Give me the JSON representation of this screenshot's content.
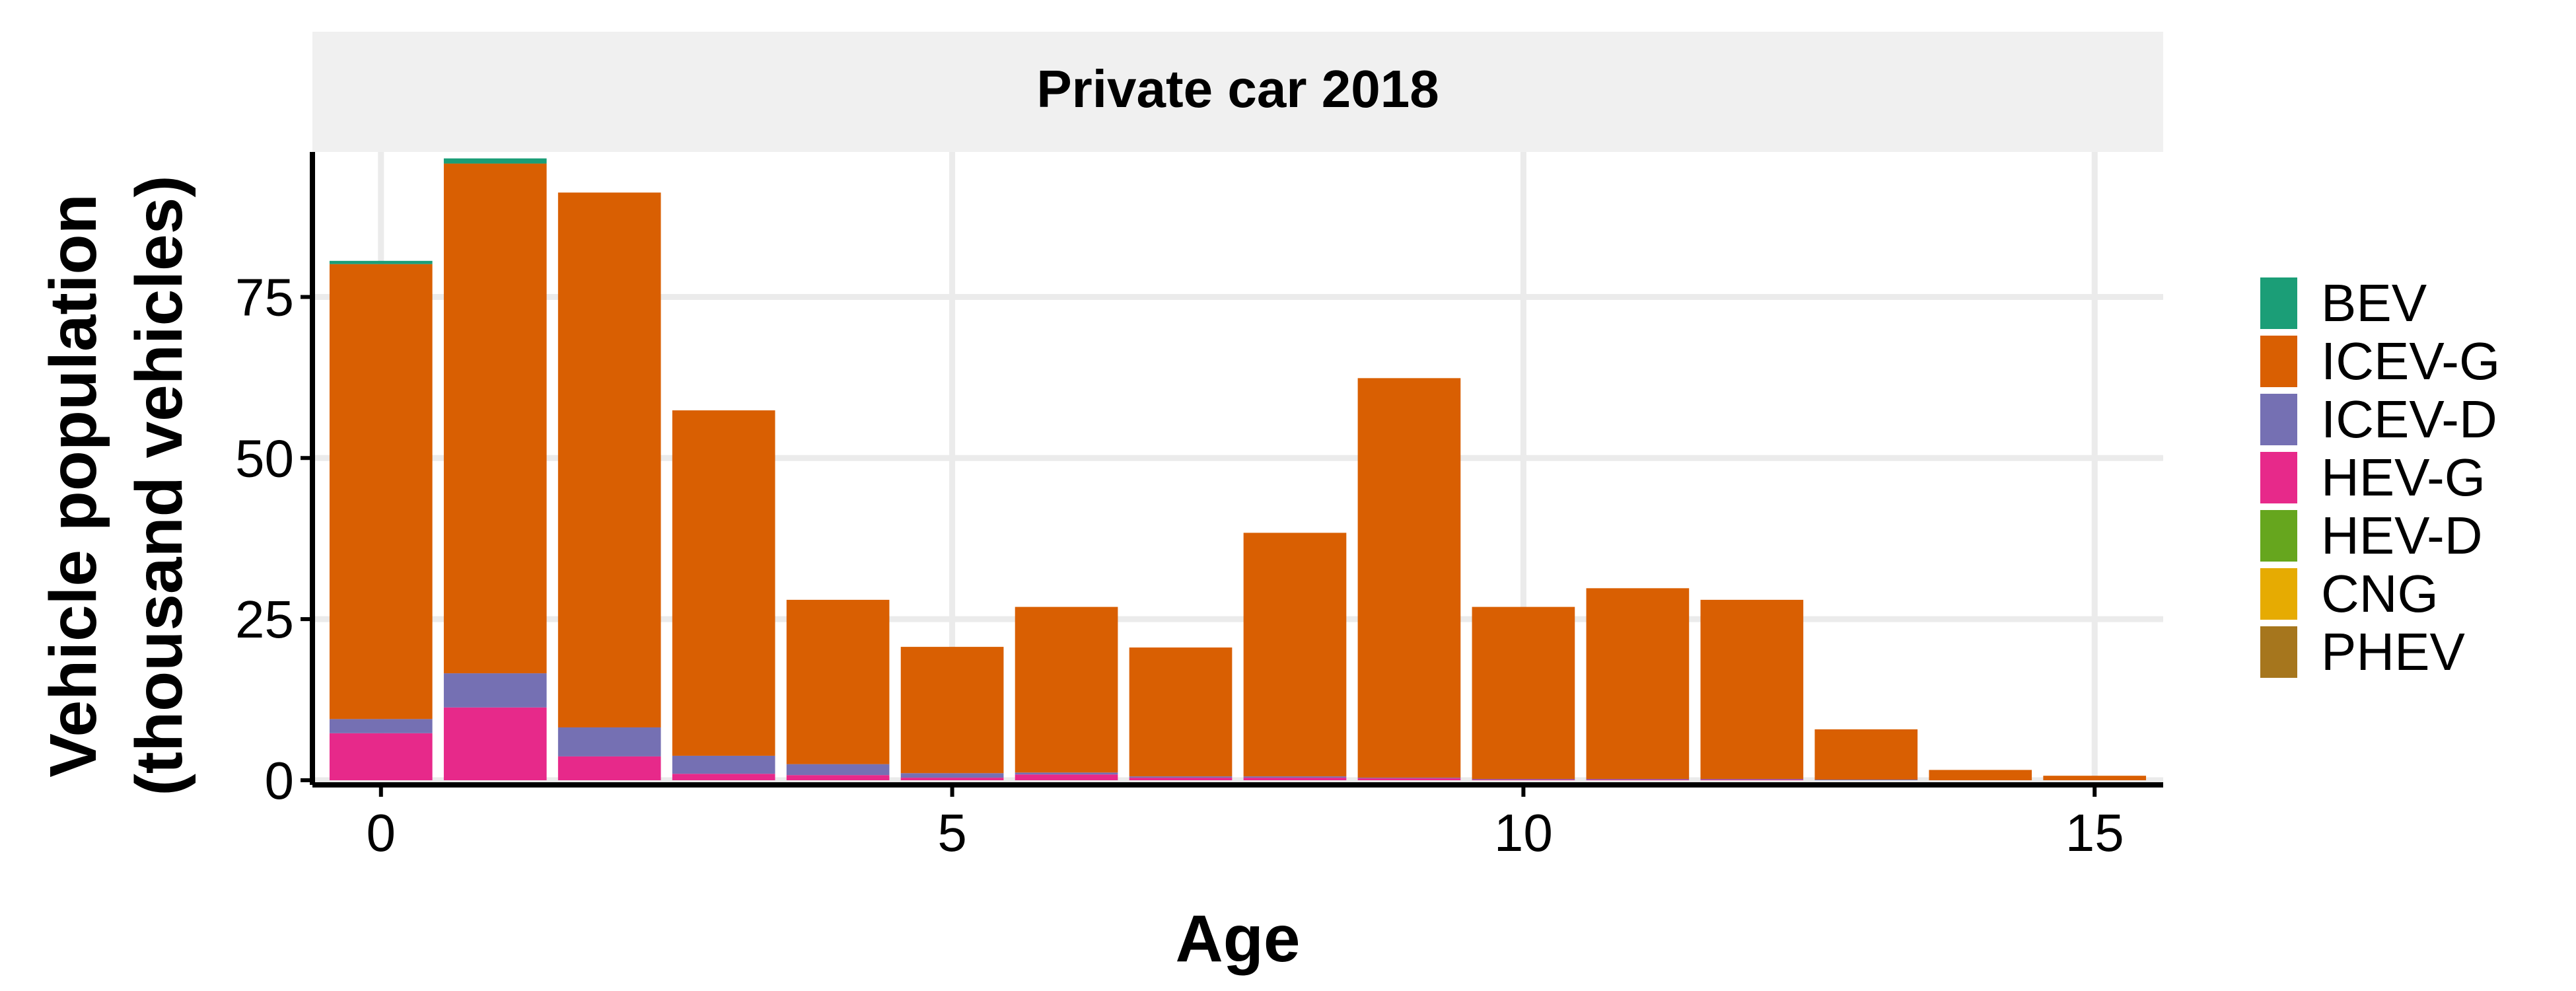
{
  "chart_data": {
    "type": "bar",
    "stacked": true,
    "facet_title": "Private car 2018",
    "xlabel": "Age",
    "ylabel_line1": "Vehicle population",
    "ylabel_line2": "(thousand vehicles)",
    "x": [
      0,
      1,
      2,
      3,
      4,
      5,
      6,
      7,
      8,
      9,
      10,
      11,
      12,
      13,
      14,
      15
    ],
    "xlim": [
      -0.6,
      15.6
    ],
    "ylim": [
      0,
      97.5
    ],
    "xticks": [
      0,
      5,
      10,
      15
    ],
    "yticks": [
      0,
      25,
      50,
      75
    ],
    "grid": true,
    "legend_position": "right",
    "series": [
      {
        "name": "HEV-G",
        "color": "#E7298A",
        "values": [
          7.3,
          11.3,
          3.7,
          1.0,
          0.8,
          0.4,
          0.9,
          0.4,
          0.4,
          0.3,
          0.1,
          0.1,
          0.1,
          0.0,
          0.0,
          0.0
        ]
      },
      {
        "name": "HEV-D",
        "color": "#66A61E",
        "values": [
          0,
          0,
          0,
          0,
          0,
          0,
          0,
          0,
          0,
          0,
          0,
          0,
          0,
          0,
          0,
          0
        ]
      },
      {
        "name": "ICEV-D",
        "color": "#7570B3",
        "values": [
          2.2,
          5.3,
          4.5,
          2.8,
          1.7,
          0.7,
          0.3,
          0.2,
          0.2,
          0.1,
          0.1,
          0.1,
          0.1,
          0.1,
          0.0,
          0.0
        ]
      },
      {
        "name": "CNG",
        "color": "#E6AB02",
        "values": [
          0,
          0,
          0,
          0,
          0,
          0,
          0,
          0,
          0,
          0,
          0,
          0,
          0,
          0,
          0,
          0
        ]
      },
      {
        "name": "PHEV",
        "color": "#A6761D",
        "values": [
          0,
          0,
          0,
          0,
          0,
          0,
          0,
          0,
          0,
          0,
          0,
          0,
          0,
          0,
          0,
          0
        ]
      },
      {
        "name": "ICEV-G",
        "color": "#D95F02",
        "values": [
          70.6,
          79.1,
          83.0,
          53.6,
          25.5,
          19.6,
          25.7,
          20.0,
          37.8,
          62.0,
          26.7,
          29.6,
          27.8,
          7.8,
          1.6,
          0.7
        ]
      },
      {
        "name": "BEV",
        "color": "#1B9E77",
        "values": [
          0.5,
          0.8,
          0.0,
          0.0,
          0.0,
          0.0,
          0.0,
          0.0,
          0.0,
          0.0,
          0.0,
          0.0,
          0.0,
          0.0,
          0.0,
          0.0
        ]
      }
    ],
    "legend_order": [
      "BEV",
      "ICEV-G",
      "ICEV-D",
      "HEV-G",
      "HEV-D",
      "CNG",
      "PHEV"
    ]
  },
  "colors": {
    "strip_background": "#F0F0F0",
    "grid": "#EBEBEB",
    "axis": "#000000",
    "text": "#000000"
  }
}
